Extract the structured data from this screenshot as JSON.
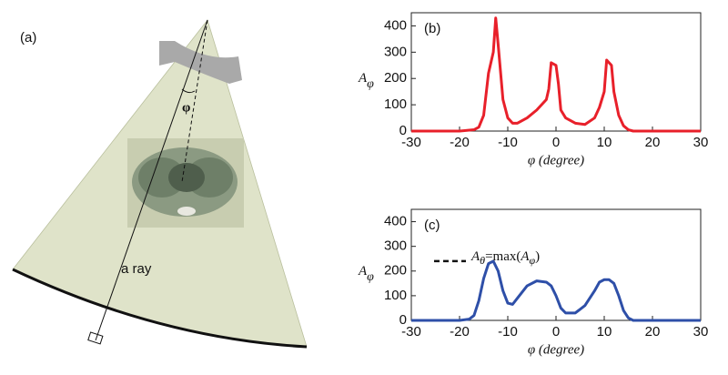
{
  "panel_a": {
    "label": "(a)",
    "angle_label": "φ",
    "ray_label": "a ray"
  },
  "chart_data": [
    {
      "type": "line",
      "panel_label": "(b)",
      "ylabel": {
        "base": "A",
        "sub": "φ"
      },
      "xlabel": "φ (degree)",
      "x": [
        -30,
        -20,
        -17,
        -16,
        -15,
        -14,
        -13,
        -12.5,
        -12,
        -11,
        -10,
        -9,
        -8,
        -6,
        -4,
        -2,
        -1.5,
        -1,
        0,
        0.5,
        1,
        2,
        4,
        6,
        8,
        9,
        10,
        10.5,
        11.5,
        12,
        13,
        14,
        15,
        16,
        20,
        30
      ],
      "values": [
        0,
        0,
        5,
        15,
        60,
        220,
        300,
        430,
        330,
        120,
        50,
        30,
        30,
        50,
        80,
        120,
        160,
        260,
        250,
        180,
        80,
        50,
        30,
        25,
        50,
        90,
        150,
        270,
        250,
        150,
        60,
        20,
        5,
        0,
        0,
        0
      ],
      "color": "#e8202a",
      "xlim": [
        -30,
        30
      ],
      "xticks": [
        -30,
        -20,
        -10,
        0,
        10,
        20,
        30
      ],
      "ylim": [
        0,
        450
      ],
      "yticks": [
        0,
        100,
        200,
        300,
        400
      ]
    },
    {
      "type": "line",
      "panel_label": "(c)",
      "ylabel": {
        "base": "A",
        "sub": "φ"
      },
      "xlabel": "φ (degree)",
      "x": [
        -30,
        -20,
        -18,
        -17,
        -16,
        -15,
        -14,
        -13,
        -12,
        -11,
        -10,
        -9,
        -8,
        -6,
        -4,
        -2,
        -1,
        0,
        1,
        2,
        4,
        6,
        8,
        9,
        10,
        11,
        12,
        13,
        14,
        15,
        16,
        20,
        30
      ],
      "values": [
        0,
        0,
        5,
        20,
        80,
        170,
        230,
        240,
        200,
        120,
        70,
        65,
        90,
        140,
        160,
        155,
        140,
        100,
        50,
        30,
        30,
        60,
        120,
        155,
        165,
        165,
        150,
        100,
        40,
        10,
        0,
        0,
        0
      ],
      "color": "#2e4fa8",
      "xlim": [
        -30,
        30
      ],
      "xticks": [
        -30,
        -20,
        -10,
        0,
        10,
        20,
        30
      ],
      "ylim": [
        0,
        450
      ],
      "yticks": [
        0,
        100,
        200,
        300,
        400
      ],
      "annotation": [
        {
          "text": "A"
        },
        {
          "text": "θ",
          "sub": true
        },
        {
          "text": "=max("
        },
        {
          "text": "A"
        },
        {
          "text": "φ",
          "sub": true
        },
        {
          "text": ")"
        }
      ]
    }
  ]
}
